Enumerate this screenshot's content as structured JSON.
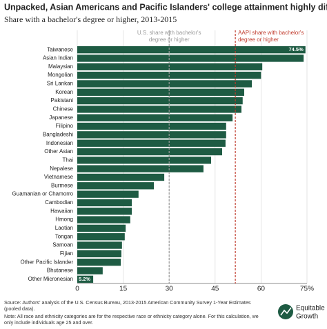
{
  "chart_data": {
    "type": "barh",
    "title": "Unpacked, Asian Americans and Pacific Islanders' college attainment highly differs",
    "subtitle": "Share with a bachelor's degree or higher, 2013-2015",
    "categories": [
      "Taiwanese",
      "Asian Indian",
      "Malaysian",
      "Mongolian",
      "Sri Lankan",
      "Korean",
      "Pakistani",
      "Chinese",
      "Japanese",
      "Filipino",
      "Bangladeshi",
      "Indonesian",
      "Other Asian",
      "Thai",
      "Nepalese",
      "Vietnamese",
      "Burmese",
      "Guamanian or Chamorro",
      "Cambodian",
      "Hawaiian",
      "Hmong",
      "Laotian",
      "Tongan",
      "Samoan",
      "Fijian",
      "Other Pacific Islander",
      "Bhutanese",
      "Other Micronesian"
    ],
    "values": [
      74.5,
      73.9,
      60.4,
      60,
      57,
      54.5,
      54,
      53.6,
      50.7,
      48.6,
      48.6,
      48.4,
      47.3,
      43.7,
      41.2,
      28.4,
      25,
      20,
      17.8,
      17.8,
      17.3,
      15.8,
      15.5,
      14.6,
      14.4,
      14.2,
      8.3,
      5.2
    ],
    "value_labels": [
      "74.5%",
      null,
      null,
      null,
      null,
      null,
      null,
      null,
      null,
      null,
      null,
      null,
      null,
      null,
      null,
      null,
      null,
      null,
      null,
      null,
      null,
      null,
      null,
      null,
      null,
      null,
      null,
      "5.2%"
    ],
    "color": "#1e5b43",
    "xlim": [
      0,
      75
    ],
    "xticks": [
      0,
      15,
      30,
      45,
      60,
      {
        "value": 75,
        "label": "75%"
      }
    ],
    "grid": true,
    "reference_lines": [
      {
        "value": 30,
        "color": "#9a9a9a",
        "label_lines": [
          "U.S. share with bachelor's",
          "degree or higher"
        ]
      },
      {
        "value": 51.6,
        "color": "#c0392b",
        "label_lines": [
          "AAPI share with bachelor's",
          "degree or higher"
        ]
      }
    ],
    "source": "Source: Authors' analysis of the U.S. Census Bureau, 2013-2015 American Community Survey 1-Year Estimates (pooled data).",
    "note": "Note: All race and ethnicity categories are for the respective race or ethnicity category alone. For this calculation, we only include individuals age 25 and over."
  },
  "logo": [
    "Equitable",
    "Growth"
  ]
}
